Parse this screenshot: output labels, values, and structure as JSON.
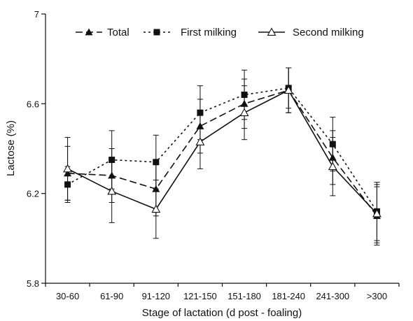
{
  "chart_data": {
    "type": "line",
    "xlabel": "Stage of lactation (d post - foaling)",
    "ylabel": "Lactose (%)",
    "ylim": [
      5.8,
      7.0
    ],
    "yticks": [
      "5.8",
      "6.2",
      "6.6",
      "7"
    ],
    "ytick_values": [
      5.8,
      6.2,
      6.6,
      7.0
    ],
    "categories": [
      "30-60",
      "61-90",
      "91-120",
      "121-150",
      "151-180",
      "181-240",
      "241-300",
      ">300"
    ],
    "legend_position": "top",
    "grid": false,
    "series": [
      {
        "name": "Total",
        "style": "dashed",
        "marker": "filled-triangle",
        "color": "#111111",
        "values": [
          6.29,
          6.28,
          6.22,
          6.5,
          6.6,
          6.66,
          6.36,
          6.1
        ],
        "errors": [
          0.12,
          0.12,
          0.12,
          0.12,
          0.11,
          0.1,
          0.12,
          0.13
        ]
      },
      {
        "name": "First milking",
        "style": "dotted",
        "marker": "filled-square",
        "color": "#111111",
        "values": [
          6.24,
          6.35,
          6.34,
          6.56,
          6.64,
          6.67,
          6.42,
          6.12
        ],
        "errors": [
          0.08,
          0.13,
          0.12,
          0.12,
          0.11,
          0.09,
          0.12,
          0.13
        ]
      },
      {
        "name": "Second milking",
        "style": "solid",
        "marker": "open-triangle",
        "color": "#111111",
        "values": [
          6.31,
          6.21,
          6.13,
          6.43,
          6.56,
          6.66,
          6.32,
          6.11
        ],
        "errors": [
          0.14,
          0.14,
          0.13,
          0.12,
          0.12,
          0.1,
          0.13,
          0.13
        ]
      }
    ]
  }
}
